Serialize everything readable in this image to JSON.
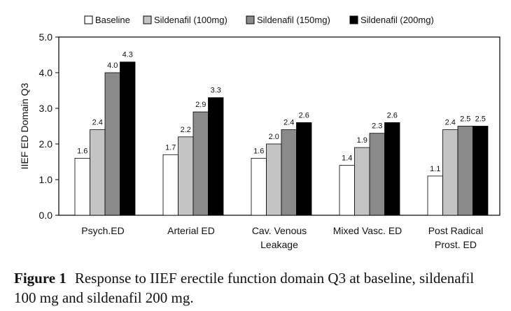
{
  "colors": {
    "baseline": "#ffffff",
    "sildenafil_100": "#c4c4c4",
    "sildenafil_150": "#8a8a8a",
    "sildenafil_200": "#000000",
    "axis": "#000000"
  },
  "chart_data": {
    "type": "bar",
    "title": "",
    "xlabel": "",
    "ylabel": "IIEF ED Domain Q3",
    "ylim": [
      0,
      5
    ],
    "yticks": [
      "0.0",
      "1.0",
      "2.0",
      "3.0",
      "4.0",
      "5.0"
    ],
    "grid": false,
    "legend_position": "top",
    "categories": [
      [
        "Psych.ED"
      ],
      [
        "Arterial ED"
      ],
      [
        "Cav. Venous",
        "Leakage"
      ],
      [
        "Mixed Vasc. ED"
      ],
      [
        "Post Radical",
        "Prost. ED"
      ]
    ],
    "series": [
      {
        "name": "Baseline",
        "color": "#ffffff",
        "values": [
          1.6,
          1.7,
          1.6,
          1.4,
          1.1
        ],
        "labels": [
          "1.6",
          "1.7",
          "1.6",
          "1.4",
          "1.1"
        ]
      },
      {
        "name": "Sildenafil (100mg)",
        "color": "#c4c4c4",
        "values": [
          2.4,
          2.2,
          2.0,
          1.9,
          2.4
        ],
        "labels": [
          "2.4",
          "2.2",
          "2.0",
          "1.9",
          "2.4"
        ]
      },
      {
        "name": "Sildenafil (150mg)",
        "color": "#8a8a8a",
        "values": [
          4.0,
          2.9,
          2.4,
          2.3,
          2.5
        ],
        "labels": [
          "4.0",
          "2.9",
          "2.4",
          "2.3",
          "2.5"
        ]
      },
      {
        "name": "Sildenafil (200mg)",
        "color": "#000000",
        "values": [
          4.3,
          3.3,
          2.6,
          2.6,
          2.5
        ],
        "labels": [
          "4.3",
          "3.3",
          "2.6",
          "2.6",
          "2.5"
        ]
      }
    ]
  },
  "caption": {
    "label": "Figure 1",
    "text": "Response to IIEF erectile function domain Q3 at baseline, sildenafil 100 mg and sildenafil 200 mg."
  }
}
